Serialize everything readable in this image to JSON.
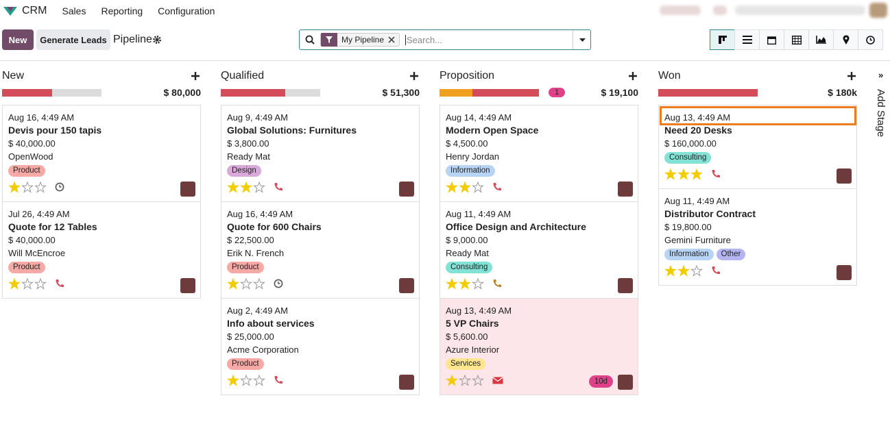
{
  "nav": {
    "app": "CRM",
    "menu": [
      "Sales",
      "Reporting",
      "Configuration"
    ]
  },
  "control": {
    "new": "New",
    "generate": "Generate Leads",
    "breadcrumb": "Pipeline",
    "facet": "My Pipeline",
    "search_placeholder": "Search..."
  },
  "add_stage": "Add Stage",
  "columns": [
    {
      "name": "New",
      "total": "$ 80,000",
      "progress": [
        {
          "color": "#d44c59",
          "value": 50
        },
        {
          "color": "#dcdcdc",
          "value": 50
        }
      ],
      "cards": [
        {
          "date": "Aug 16, 4:49 AM",
          "title": "Devis pour 150 tapis",
          "amount": "$ 40,000.00",
          "customer": "OpenWood",
          "tags": [
            {
              "name": "Product",
              "color": "#f7a9a6"
            }
          ],
          "priority": 1,
          "activity": {
            "icon": "clock",
            "color": "#555555"
          }
        },
        {
          "date": "Jul 26, 4:49 AM",
          "title": "Quote for 12 Tables",
          "amount": "$ 40,000.00",
          "customer": "Will McEncroe",
          "tags": [
            {
              "name": "Product",
              "color": "#f7a9a6"
            }
          ],
          "priority": 1,
          "activity": {
            "icon": "phone",
            "color": "#d44c59"
          }
        }
      ]
    },
    {
      "name": "Qualified",
      "total": "$ 51,300",
      "progress": [
        {
          "color": "#d44c59",
          "value": 65
        },
        {
          "color": "#dcdcdc",
          "value": 35
        }
      ],
      "cards": [
        {
          "date": "Aug 9, 4:49 AM",
          "title": "Global Solutions: Furnitures",
          "amount": "$ 3,800.00",
          "customer": "Ready Mat",
          "tags": [
            {
              "name": "Design",
              "color": "#d9a9d9"
            }
          ],
          "priority": 2,
          "activity": {
            "icon": "phone",
            "color": "#d44c59"
          }
        },
        {
          "date": "Aug 16, 4:49 AM",
          "title": "Quote for 600 Chairs",
          "amount": "$ 22,500.00",
          "customer": "Erik N. French",
          "tags": [
            {
              "name": "Product",
              "color": "#f7a9a6"
            }
          ],
          "priority": 1,
          "activity": {
            "icon": "clock",
            "color": "#555555"
          }
        },
        {
          "date": "Aug 2, 4:49 AM",
          "title": "Info about services",
          "amount": "$ 25,000.00",
          "customer": "Acme Corporation",
          "tags": [
            {
              "name": "Product",
              "color": "#f7a9a6"
            }
          ],
          "priority": 1,
          "activity": {
            "icon": "phone",
            "color": "#d44c59"
          }
        }
      ]
    },
    {
      "name": "Proposition",
      "total": "$ 19,100",
      "badge": "1",
      "progress": [
        {
          "color": "#f0a020",
          "value": 33
        },
        {
          "color": "#d44c59",
          "value": 67
        }
      ],
      "cards": [
        {
          "date": "Aug 14, 4:49 AM",
          "title": "Modern Open Space",
          "amount": "$ 4,500.00",
          "customer": "Henry Jordan",
          "tags": [
            {
              "name": "Information",
              "color": "#b8d4f5"
            }
          ],
          "priority": 2,
          "activity": {
            "icon": "phone",
            "color": "#d44c59"
          }
        },
        {
          "date": "Aug 11, 4:49 AM",
          "title": "Office Design and Architecture",
          "amount": "$ 9,000.00",
          "customer": "Ready Mat",
          "tags": [
            {
              "name": "Consulting",
              "color": "#82e2d6"
            }
          ],
          "priority": 2,
          "activity": {
            "icon": "phone",
            "color": "#b8862b"
          }
        },
        {
          "date": "Aug 13, 4:49 AM",
          "title": "5 VP Chairs",
          "amount": "$ 5,600.00",
          "customer": "Azure Interior",
          "tags": [
            {
              "name": "Services",
              "color": "#fde68e"
            }
          ],
          "priority": 1,
          "activity": {
            "icon": "envelope",
            "color": "#d9363e"
          },
          "deadline": "10d",
          "color": "#fce6e9"
        }
      ]
    },
    {
      "name": "Won",
      "total": "$ 180k",
      "progress": [
        {
          "color": "#d44c59",
          "value": 100
        }
      ],
      "cards": [
        {
          "date": "Aug 13, 4:49 AM",
          "title": "Need 20 Desks",
          "amount": "$ 160,000.00",
          "tags": [
            {
              "name": "Consulting",
              "color": "#82e2d6"
            }
          ],
          "priority": 3,
          "activity": {
            "icon": "phone",
            "color": "#d44c59"
          },
          "highlight": "#f07b1d"
        },
        {
          "date": "Aug 11, 4:49 AM",
          "title": "Distributor Contract",
          "amount": "$ 19,800.00",
          "customer": "Gemini Furniture",
          "tags": [
            {
              "name": "Information",
              "color": "#b8d4f5"
            },
            {
              "name": "Other",
              "color": "#b5b5f2"
            }
          ],
          "priority": 2,
          "activity": {
            "icon": "phone",
            "color": "#d44c59"
          }
        }
      ]
    }
  ]
}
